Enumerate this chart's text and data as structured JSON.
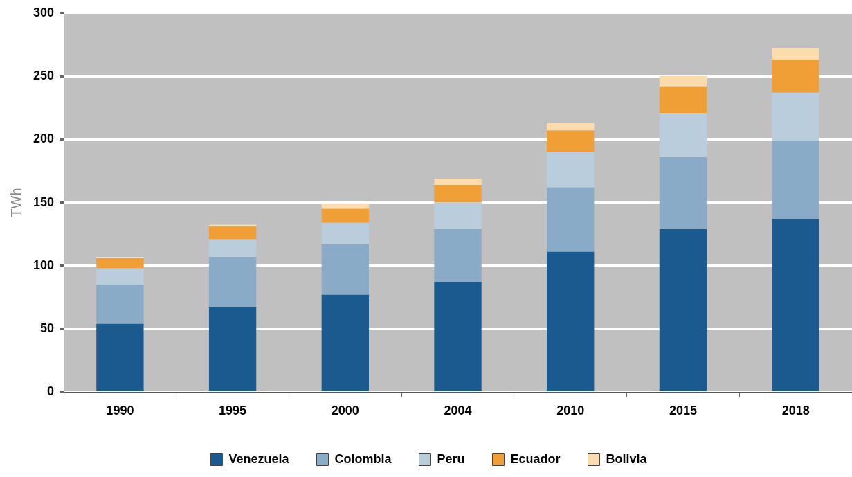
{
  "chart_data": {
    "type": "bar",
    "stacked": true,
    "ylabel": "TWh",
    "categories": [
      "1990",
      "1995",
      "2000",
      "2004",
      "2010",
      "2015",
      "2018"
    ],
    "series": [
      {
        "name": "Venezuela",
        "color": "#1a5a8e",
        "values": [
          54,
          67,
          77,
          87,
          111,
          129,
          137
        ]
      },
      {
        "name": "Colombia",
        "color": "#8aabc7",
        "values": [
          31,
          40,
          40,
          42,
          51,
          57,
          62
        ]
      },
      {
        "name": "Peru",
        "color": "#b9cddd",
        "values": [
          13,
          14,
          17,
          21,
          28,
          35,
          38
        ]
      },
      {
        "name": "Ecuador",
        "color": "#ef9f35",
        "values": [
          8,
          10,
          11,
          14,
          17,
          21,
          26
        ]
      },
      {
        "name": "Bolivia",
        "color": "#fcdcac",
        "values": [
          1,
          1.5,
          4,
          5,
          6,
          8,
          9
        ]
      }
    ],
    "ylim": [
      0,
      300
    ],
    "yticks": [
      0,
      50,
      100,
      150,
      200,
      250,
      300
    ],
    "grid": "y",
    "legend": "bottom"
  }
}
